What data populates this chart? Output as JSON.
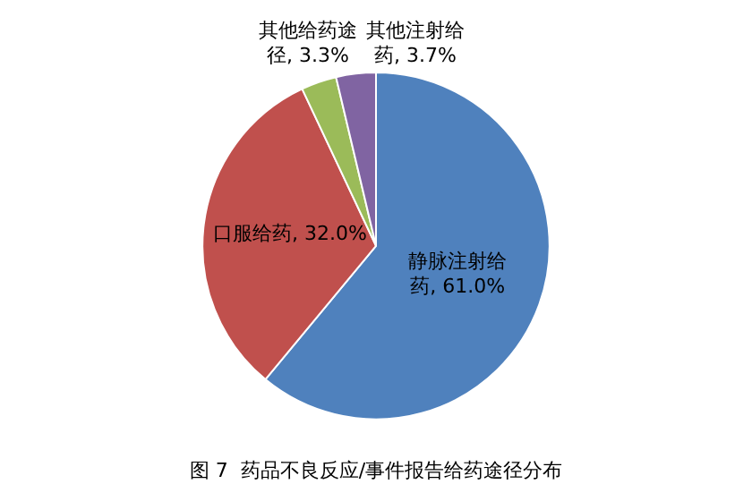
{
  "chart_data": {
    "type": "pie",
    "title": "图 7  药品不良反应/事件报告给药途径分布",
    "categories": [
      "静脉注射给药",
      "口服给药",
      "其他给药途径",
      "其他注射给药"
    ],
    "values": [
      61.0,
      32.0,
      3.3,
      3.7
    ],
    "colors": [
      "#4f81bd",
      "#c0504d",
      "#9bbb59",
      "#8064a2"
    ],
    "value_labels": [
      "61.0%",
      "32.0%",
      "3.3%",
      "3.7%"
    ],
    "legend": false
  }
}
